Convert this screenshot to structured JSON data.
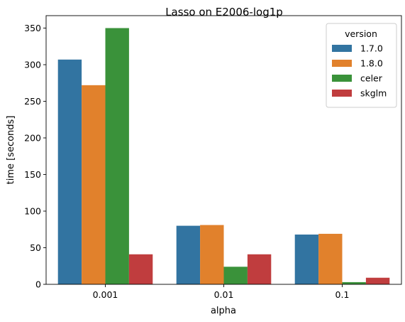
{
  "chart_data": {
    "type": "bar",
    "title": "Lasso on E2006-log1p",
    "xlabel": "alpha",
    "ylabel": "time [seconds]",
    "categories": [
      "0.001",
      "0.01",
      "0.1"
    ],
    "ylim": [
      0,
      367
    ],
    "yticks": [
      0,
      50,
      100,
      150,
      200,
      250,
      300,
      350
    ],
    "legend": {
      "title": "version",
      "position": "top-right"
    },
    "series": [
      {
        "name": "1.7.0",
        "color": "#3274a1",
        "values": [
          307,
          80,
          68
        ]
      },
      {
        "name": "1.8.0",
        "color": "#e1812c",
        "values": [
          272,
          81,
          69
        ]
      },
      {
        "name": "celer",
        "color": "#3a923a",
        "values": [
          350,
          24,
          3
        ]
      },
      {
        "name": "skglm",
        "color": "#c03d3e",
        "values": [
          41,
          41,
          9
        ]
      }
    ],
    "grid": false
  }
}
